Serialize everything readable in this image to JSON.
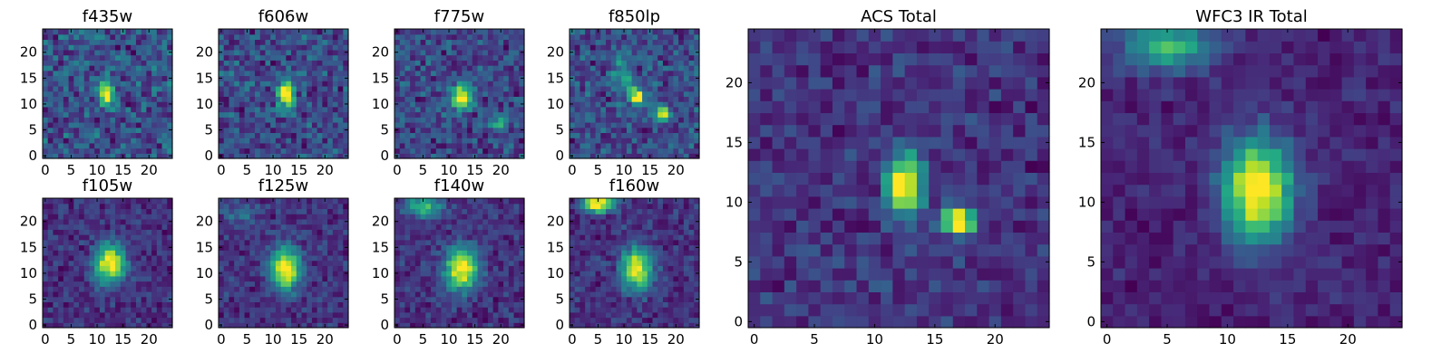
{
  "chart_data": [
    {
      "type": "heatmap",
      "title": "f435w",
      "xticks": [
        "0",
        "5",
        "10",
        "15",
        "20"
      ],
      "yticks": [
        "0",
        "5",
        "10",
        "15",
        "20"
      ],
      "xlim": [
        -0.5,
        24.5
      ],
      "ylim": [
        -0.5,
        24.5
      ],
      "grid": false,
      "colormap": "viridis",
      "grid_size": 25,
      "sources": [
        {
          "x": 12,
          "y": 12,
          "sx": 1.0,
          "sy": 2.0,
          "amp": 1.0
        }
      ],
      "noise": 0.45,
      "background": 0.45,
      "seed": 11
    },
    {
      "type": "heatmap",
      "title": "f606w",
      "xticks": [
        "0",
        "5",
        "10",
        "15",
        "20"
      ],
      "yticks": [
        "0",
        "5",
        "10",
        "15",
        "20"
      ],
      "xlim": [
        -0.5,
        24.5
      ],
      "ylim": [
        -0.5,
        24.5
      ],
      "grid": false,
      "colormap": "viridis",
      "grid_size": 25,
      "sources": [
        {
          "x": 12.5,
          "y": 12,
          "sx": 1.1,
          "sy": 2.0,
          "amp": 1.0
        }
      ],
      "noise": 0.4,
      "background": 0.42,
      "seed": 23
    },
    {
      "type": "heatmap",
      "title": "f775w",
      "xticks": [
        "0",
        "5",
        "10",
        "15",
        "20"
      ],
      "yticks": [
        "0",
        "5",
        "10",
        "15",
        "20"
      ],
      "xlim": [
        -0.5,
        24.5
      ],
      "ylim": [
        -0.5,
        24.5
      ],
      "grid": false,
      "colormap": "viridis",
      "grid_size": 25,
      "sources": [
        {
          "x": 12.5,
          "y": 11.5,
          "sx": 1.3,
          "sy": 1.9,
          "amp": 1.0
        },
        {
          "x": 19.5,
          "y": 6.5,
          "sx": 1.0,
          "sy": 1.0,
          "amp": 0.45
        }
      ],
      "noise": 0.35,
      "background": 0.4,
      "seed": 37
    },
    {
      "type": "heatmap",
      "title": "f850lp",
      "xticks": [
        "0",
        "5",
        "10",
        "15",
        "20"
      ],
      "yticks": [
        "0",
        "5",
        "10",
        "15",
        "20"
      ],
      "xlim": [
        -0.5,
        24.5
      ],
      "ylim": [
        -0.5,
        24.5
      ],
      "grid": false,
      "colormap": "viridis",
      "grid_size": 25,
      "sources": [
        {
          "x": 12.5,
          "y": 11.5,
          "sx": 1.0,
          "sy": 1.2,
          "amp": 0.9
        },
        {
          "x": 17.5,
          "y": 8.5,
          "sx": 0.9,
          "sy": 0.9,
          "amp": 1.0
        },
        {
          "x": 10,
          "y": 16,
          "sx": 1.5,
          "sy": 3.0,
          "amp": 0.35
        }
      ],
      "noise": 0.35,
      "background": 0.38,
      "seed": 41
    },
    {
      "type": "heatmap",
      "title": "f105w",
      "xticks": [
        "0",
        "5",
        "10",
        "15",
        "20"
      ],
      "yticks": [
        "0",
        "5",
        "10",
        "15",
        "20"
      ],
      "xlim": [
        -0.5,
        24.5
      ],
      "ylim": [
        -0.5,
        24.5
      ],
      "grid": false,
      "colormap": "viridis",
      "grid_size": 25,
      "sources": [
        {
          "x": 12.5,
          "y": 12,
          "sx": 2.0,
          "sy": 2.6,
          "amp": 1.0
        }
      ],
      "noise": 0.22,
      "background": 0.42,
      "seed": 53
    },
    {
      "type": "heatmap",
      "title": "f125w",
      "xticks": [
        "0",
        "5",
        "10",
        "15",
        "20"
      ],
      "yticks": [
        "0",
        "5",
        "10",
        "15",
        "20"
      ],
      "xlim": [
        -0.5,
        24.5
      ],
      "ylim": [
        -0.5,
        24.5
      ],
      "grid": false,
      "colormap": "viridis",
      "grid_size": 25,
      "sources": [
        {
          "x": 12.5,
          "y": 11,
          "sx": 2.0,
          "sy": 2.8,
          "amp": 1.0
        },
        {
          "x": 4,
          "y": 22,
          "sx": 2.5,
          "sy": 1.5,
          "amp": 0.25
        }
      ],
      "noise": 0.22,
      "background": 0.42,
      "seed": 67
    },
    {
      "type": "heatmap",
      "title": "f140w",
      "xticks": [
        "0",
        "5",
        "10",
        "15",
        "20"
      ],
      "yticks": [
        "0",
        "5",
        "10",
        "15",
        "20"
      ],
      "xlim": [
        -0.5,
        24.5
      ],
      "ylim": [
        -0.5,
        24.5
      ],
      "grid": false,
      "colormap": "viridis",
      "grid_size": 25,
      "sources": [
        {
          "x": 12.5,
          "y": 11,
          "sx": 2.2,
          "sy": 2.8,
          "amp": 0.9
        },
        {
          "x": 5,
          "y": 23,
          "sx": 2.5,
          "sy": 1.4,
          "amp": 0.55
        }
      ],
      "noise": 0.2,
      "background": 0.45,
      "seed": 79
    },
    {
      "type": "heatmap",
      "title": "f160w",
      "xticks": [
        "0",
        "5",
        "10",
        "15",
        "20"
      ],
      "yticks": [
        "0",
        "5",
        "10",
        "15",
        "20"
      ],
      "xlim": [
        -0.5,
        24.5
      ],
      "ylim": [
        -0.5,
        24.5
      ],
      "grid": false,
      "colormap": "viridis",
      "grid_size": 25,
      "sources": [
        {
          "x": 12.5,
          "y": 11,
          "sx": 2.0,
          "sy": 2.8,
          "amp": 0.9
        },
        {
          "x": 5,
          "y": 23.5,
          "sx": 2.2,
          "sy": 1.2,
          "amp": 0.95
        }
      ],
      "noise": 0.22,
      "background": 0.42,
      "seed": 83
    },
    {
      "type": "heatmap",
      "title": "ACS Total",
      "xticks": [
        "0",
        "5",
        "10",
        "15",
        "20"
      ],
      "yticks": [
        "0",
        "5",
        "10",
        "15",
        "20"
      ],
      "xlim": [
        -0.5,
        24.5
      ],
      "ylim": [
        -0.5,
        24.5
      ],
      "grid": false,
      "colormap": "viridis",
      "grid_size": 25,
      "sources": [
        {
          "x": 12.5,
          "y": 11.5,
          "sx": 1.0,
          "sy": 1.8,
          "amp": 1.0
        },
        {
          "x": 17,
          "y": 8.5,
          "sx": 1.0,
          "sy": 0.8,
          "amp": 1.0
        }
      ],
      "noise": 0.2,
      "background": 0.4,
      "seed": 97
    },
    {
      "type": "heatmap",
      "title": "WFC3 IR Total",
      "xticks": [
        "0",
        "5",
        "10",
        "15",
        "20"
      ],
      "yticks": [
        "0",
        "5",
        "10",
        "15",
        "20"
      ],
      "xlim": [
        -0.5,
        24.5
      ],
      "ylim": [
        -0.5,
        24.5
      ],
      "grid": false,
      "colormap": "viridis",
      "grid_size": 25,
      "sources": [
        {
          "x": 12.5,
          "y": 11,
          "sx": 2.0,
          "sy": 3.0,
          "amp": 1.0
        },
        {
          "x": 5,
          "y": 23,
          "sx": 2.5,
          "sy": 1.4,
          "amp": 0.6
        }
      ],
      "noise": 0.15,
      "background": 0.45,
      "seed": 101
    }
  ]
}
